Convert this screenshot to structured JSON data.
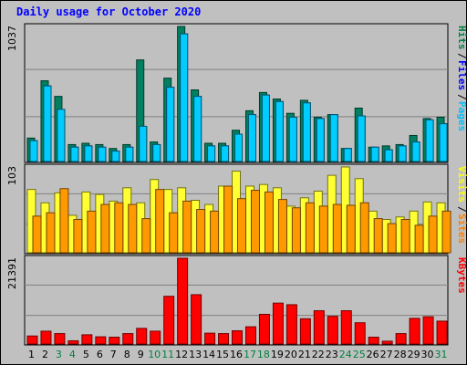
{
  "title": "Daily usage for October 2020",
  "chart_data": [
    {
      "type": "bar",
      "name": "pages-files-hits",
      "ytick_label": "1037",
      "legend": [
        {
          "label": "Hits",
          "color": "#008040"
        },
        {
          "label": "Files",
          "color": "#0000ff"
        },
        {
          "label": "Pages",
          "color": "#00c0ff"
        }
      ],
      "categories": [
        "1",
        "2",
        "3",
        "4",
        "5",
        "6",
        "7",
        "8",
        "9",
        "10",
        "11",
        "12",
        "13",
        "14",
        "15",
        "16",
        "17",
        "18",
        "19",
        "20",
        "21",
        "22",
        "23",
        "24",
        "25",
        "26",
        "27",
        "28",
        "29",
        "30",
        "31"
      ],
      "weekend_days": [
        "3",
        "4",
        "10",
        "11",
        "17",
        "18",
        "24",
        "25",
        "31"
      ],
      "ylim": [
        0,
        1037
      ],
      "series": [
        {
          "name": "Hits",
          "color": "#008060",
          "values": [
            180,
            620,
            500,
            130,
            140,
            130,
            100,
            130,
            780,
            150,
            640,
            1037,
            550,
            140,
            140,
            240,
            390,
            530,
            480,
            370,
            470,
            340,
            360,
            100,
            410,
            110,
            120,
            130,
            200,
            330,
            340
          ]
        },
        {
          "name": "Files",
          "color": "#0000ff",
          "values": [
            160,
            580,
            400,
            110,
            120,
            110,
            80,
            110,
            270,
            130,
            570,
            980,
            500,
            120,
            120,
            210,
            360,
            510,
            460,
            340,
            450,
            330,
            360,
            100,
            350,
            110,
            90,
            120,
            150,
            320,
            290
          ]
        },
        {
          "name": "Pages",
          "color": "#00ccff",
          "values": [
            160,
            580,
            400,
            110,
            120,
            110,
            80,
            110,
            270,
            130,
            570,
            980,
            500,
            120,
            120,
            210,
            360,
            510,
            460,
            340,
            450,
            330,
            360,
            100,
            350,
            110,
            90,
            120,
            150,
            320,
            290
          ]
        }
      ]
    },
    {
      "type": "bar",
      "name": "sites-visits",
      "ytick_label": "103",
      "legend": [
        {
          "label": "Visits",
          "color": "#ffff00"
        },
        {
          "label": "Sites",
          "color": "#ff8000"
        }
      ],
      "categories": [
        "1",
        "2",
        "3",
        "4",
        "5",
        "6",
        "7",
        "8",
        "9",
        "10",
        "11",
        "12",
        "13",
        "14",
        "15",
        "16",
        "17",
        "18",
        "19",
        "20",
        "21",
        "22",
        "23",
        "24",
        "25",
        "26",
        "27",
        "28",
        "29",
        "30",
        "31"
      ],
      "ylim": [
        0,
        103
      ],
      "series": [
        {
          "name": "Visits",
          "color": "#ffff33",
          "values": [
            76,
            60,
            72,
            45,
            73,
            70,
            62,
            78,
            60,
            88,
            76,
            78,
            63,
            58,
            80,
            98,
            80,
            82,
            78,
            56,
            66,
            74,
            93,
            103,
            89,
            50,
            40,
            43,
            50,
            61,
            60
          ]
        },
        {
          "name": "Sites",
          "color": "#ff9900",
          "values": [
            44,
            48,
            77,
            40,
            50,
            58,
            60,
            58,
            41,
            76,
            48,
            62,
            52,
            50,
            80,
            65,
            75,
            73,
            64,
            54,
            60,
            56,
            58,
            57,
            60,
            41,
            35,
            40,
            33,
            44,
            50
          ]
        }
      ]
    },
    {
      "type": "bar",
      "name": "kbytes",
      "ytick_label": "21391",
      "legend": [
        {
          "label": "KBytes",
          "color": "#ff0000"
        }
      ],
      "categories": [
        "1",
        "2",
        "3",
        "4",
        "5",
        "6",
        "7",
        "8",
        "9",
        "10",
        "11",
        "12",
        "13",
        "14",
        "15",
        "16",
        "17",
        "18",
        "19",
        "20",
        "21",
        "22",
        "23",
        "24",
        "25",
        "26",
        "27",
        "28",
        "29",
        "30",
        "31"
      ],
      "ylim": [
        0,
        21391
      ],
      "series": [
        {
          "name": "KBytes",
          "color": "#ff0000",
          "values": [
            2000,
            3200,
            2600,
            800,
            2300,
            1800,
            1700,
            2600,
            3900,
            3200,
            11900,
            21391,
            12300,
            2700,
            2600,
            3300,
            4300,
            7400,
            10200,
            9800,
            6300,
            8300,
            6900,
            8300,
            5300,
            1700,
            700,
            2600,
            6400,
            6800,
            5700
          ]
        }
      ]
    }
  ]
}
